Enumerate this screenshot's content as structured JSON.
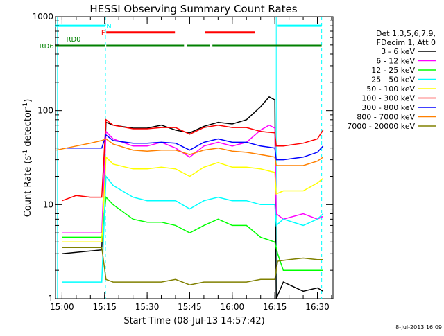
{
  "chart_data": {
    "type": "line",
    "title": "HESSI Observing Summary Count Rates",
    "xlabel": "Start Time (08-Jul-13 14:57:42)",
    "ylabel": "Count Rate (s",
    "ylabel_sup1": "-1",
    "ylabel_mid": " detector",
    "ylabel_sup2": "-1",
    "ylabel_end": ")",
    "date_stamp": "8-Jul-2013 16:09",
    "yscale": "log",
    "ylim": [
      1,
      1000
    ],
    "xlim_minutes": [
      897.7,
      995.5
    ],
    "x_ticks": [
      {
        "label": "15:00",
        "minute": 900
      },
      {
        "label": "15:15",
        "minute": 915
      },
      {
        "label": "15:30",
        "minute": 930
      },
      {
        "label": "15:45",
        "minute": 945
      },
      {
        "label": "16:00",
        "minute": 960
      },
      {
        "label": "16:15",
        "minute": 975
      },
      {
        "label": "16:30",
        "minute": 990
      }
    ],
    "y_ticks": [
      {
        "label": "1",
        "value": 1
      },
      {
        "label": "10",
        "value": 10
      },
      {
        "label": "100",
        "value": 100
      },
      {
        "label": "1000",
        "value": 1000
      }
    ],
    "legend_header": [
      "Det 1,3,5,6,7,9,",
      "FDecim 1, Att 0"
    ],
    "series": [
      {
        "name": "3 - 6 keV",
        "color": "#000000",
        "x": [
          900,
          914,
          915.5,
          918,
          925,
          930,
          935,
          940,
          945,
          950,
          955,
          960,
          965,
          970,
          973,
          975,
          975.5,
          978,
          985,
          990,
          992
        ],
        "y": [
          3,
          3.3,
          75,
          70,
          65,
          65,
          70,
          62,
          58,
          68,
          75,
          72,
          80,
          110,
          140,
          130,
          1,
          1.5,
          1.2,
          1.3,
          1.2
        ]
      },
      {
        "name": "6 - 12 keV",
        "color": "#ff00ff",
        "x": [
          900,
          914,
          915.5,
          918,
          925,
          930,
          935,
          940,
          945,
          950,
          955,
          960,
          965,
          970,
          973,
          975,
          975.5,
          978,
          985,
          990,
          992
        ],
        "y": [
          5,
          5,
          60,
          50,
          42,
          42,
          46,
          40,
          32,
          42,
          46,
          42,
          46,
          62,
          70,
          65,
          8,
          7,
          8,
          7,
          7.5
        ]
      },
      {
        "name": "12 - 25 keV",
        "color": "#00ff00",
        "x": [
          900,
          914,
          915.5,
          918,
          925,
          930,
          935,
          940,
          945,
          950,
          955,
          960,
          965,
          970,
          975,
          976,
          978,
          985,
          990,
          992
        ],
        "y": [
          4.5,
          4.5,
          12,
          10,
          7,
          6.5,
          6.5,
          6,
          5,
          6,
          7,
          6,
          6,
          4.5,
          4,
          3,
          2,
          2,
          2,
          2
        ]
      },
      {
        "name": "25 - 50 keV",
        "color": "#00ffff",
        "x": [
          900,
          914,
          915.5,
          918,
          925,
          930,
          935,
          940,
          945,
          950,
          955,
          960,
          965,
          970,
          975,
          975.5,
          978,
          985,
          990,
          992
        ],
        "y": [
          1.5,
          1.5,
          20,
          16,
          12,
          11,
          11,
          11,
          9,
          11,
          12,
          11,
          11,
          10,
          10,
          6,
          7,
          6,
          7,
          8
        ]
      },
      {
        "name": "50 - 100 keV",
        "color": "#ffff00",
        "x": [
          900,
          914,
          915.5,
          918,
          925,
          930,
          935,
          940,
          945,
          950,
          955,
          960,
          965,
          970,
          975,
          975.5,
          978,
          985,
          990,
          992
        ],
        "y": [
          4,
          4,
          32,
          27,
          24,
          24,
          25,
          24,
          20,
          25,
          28,
          25,
          25,
          24,
          22,
          13,
          14,
          14,
          17,
          19
        ]
      },
      {
        "name": "100 - 300 keV",
        "color": "#ff0000",
        "x": [
          900,
          905,
          910,
          914,
          915.5,
          918,
          925,
          930,
          935,
          940,
          945,
          950,
          955,
          960,
          965,
          970,
          975,
          975.5,
          978,
          985,
          990,
          992
        ],
        "y": [
          11,
          12.5,
          12,
          12,
          80,
          70,
          64,
          64,
          66,
          66,
          56,
          66,
          70,
          66,
          66,
          60,
          58,
          42,
          42,
          45,
          50,
          62
        ]
      },
      {
        "name": "300 - 800 keV",
        "color": "#0000ff",
        "x": [
          900,
          914,
          915.5,
          918,
          925,
          930,
          935,
          940,
          945,
          950,
          955,
          960,
          965,
          970,
          975,
          975.5,
          978,
          985,
          990,
          992
        ],
        "y": [
          40,
          40,
          55,
          48,
          45,
          45,
          46,
          45,
          38,
          46,
          50,
          46,
          46,
          42,
          40,
          30,
          30,
          32,
          36,
          42
        ]
      },
      {
        "name": "800 - 7000 keV",
        "color": "#ff8000",
        "x": [
          898,
          905,
          910,
          914,
          915.5,
          918,
          925,
          930,
          935,
          940,
          945,
          950,
          955,
          960,
          965,
          970,
          975,
          975.5,
          978,
          985,
          990,
          992
        ],
        "y": [
          38,
          42,
          45,
          48,
          50,
          44,
          38,
          37,
          38,
          38,
          34,
          38,
          40,
          37,
          36,
          34,
          32,
          26,
          26,
          26,
          29,
          32
        ]
      },
      {
        "name": "7000 - 20000 keV",
        "color": "#808000",
        "x": [
          900,
          914,
          915.5,
          918,
          925,
          930,
          935,
          940,
          945,
          950,
          955,
          960,
          965,
          970,
          975,
          976,
          980,
          985,
          990,
          992
        ],
        "y": [
          3.5,
          3.5,
          1.6,
          1.5,
          1.5,
          1.5,
          1.5,
          1.6,
          1.4,
          1.5,
          1.5,
          1.5,
          1.5,
          1.6,
          1.6,
          2.5,
          2.6,
          2.7,
          2.6,
          2.6
        ]
      }
    ],
    "top_bars": [
      {
        "label": "N",
        "label_color": "#00ffff",
        "label_minute": 915.6,
        "color": "#00ffff",
        "level": 800,
        "segments": [
          [
            897.7,
            915.3
          ],
          [
            976,
            991.5
          ]
        ]
      },
      {
        "label": "F",
        "label_color": "#ff0000",
        "label_minute": 913.8,
        "color": "#ff0000",
        "level": 680,
        "segments": [
          [
            915.6,
            939.8
          ],
          [
            950.5,
            968
          ]
        ]
      },
      {
        "label": "RD0",
        "label_color": "#008000",
        "label_minute": 901.5,
        "color": "#008000",
        "level": 580,
        "segments": []
      },
      {
        "label": "RD6",
        "label_color": "#008000",
        "label_minute": 892,
        "color": "#008000",
        "level": 490,
        "segments": [
          [
            897.7,
            915.3
          ],
          [
            915.6,
            943
          ],
          [
            944,
            952
          ],
          [
            953,
            991.5
          ]
        ]
      }
    ],
    "vertical_markers": [
      {
        "minute": 915.3,
        "color": "#00ffff",
        "style": "dashed"
      },
      {
        "minute": 975.5,
        "color": "#00ffff",
        "style": "solid"
      },
      {
        "minute": 991.5,
        "color": "#00ffff",
        "style": "dashed"
      },
      {
        "minute": 898.4,
        "color": "#00ffff",
        "style": "solid"
      }
    ],
    "grid": false,
    "legend_position": "right"
  }
}
